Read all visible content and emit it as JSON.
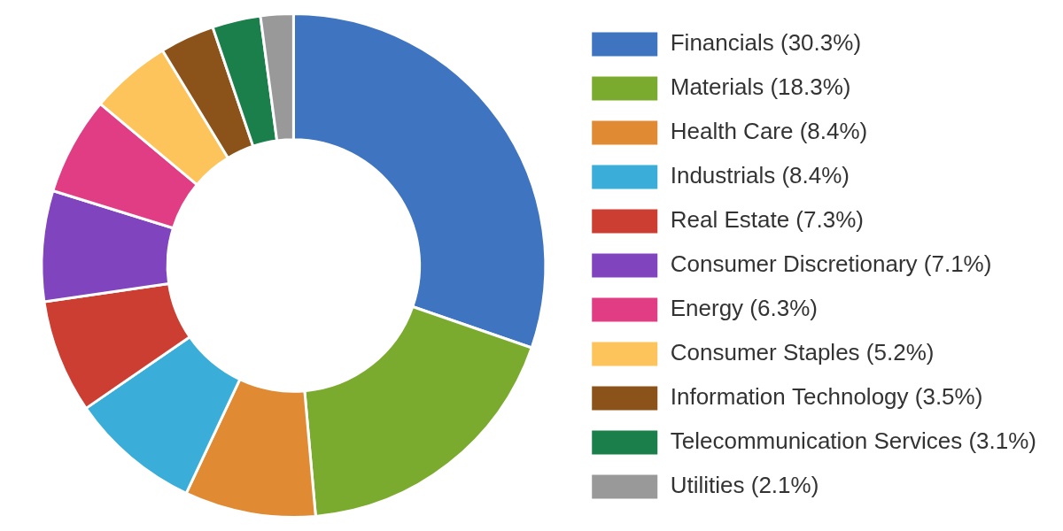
{
  "chart_data": {
    "type": "doughnut",
    "categories": [
      "Financials (30.3%)",
      "Materials (18.3%)",
      "Health Care (8.4%)",
      "Industrials (8.4%)",
      "Real Estate (7.3%)",
      "Consumer Discretionary (7.1%)",
      "Energy (6.3%)",
      "Consumer Staples (5.2%)",
      "Information Technology (3.5%)",
      "Telecommunication Services (3.1%)",
      "Utilities (2.1%)"
    ],
    "values": [
      30.3,
      18.3,
      8.4,
      8.4,
      7.3,
      7.1,
      6.3,
      5.2,
      3.5,
      3.1,
      2.1
    ],
    "colors": [
      "#3f74c0",
      "#7aab2e",
      "#e08a33",
      "#3aadd9",
      "#cc3d32",
      "#8044bf",
      "#e03d84",
      "#fec45c",
      "#8b5219",
      "#1a7f4b",
      "#999999"
    ],
    "legend": "right"
  }
}
